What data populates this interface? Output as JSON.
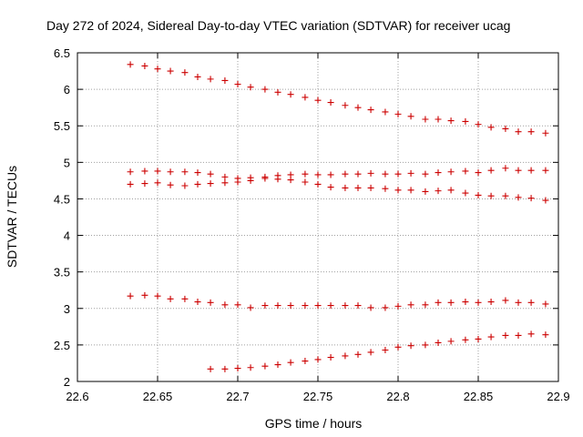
{
  "chart_data": {
    "type": "scatter",
    "title": "Day 272 of 2024, Sidereal Day-to-day VTEC variation (SDTVAR) for receiver ucag",
    "xlabel": "GPS time / hours",
    "ylabel": "SDTVAR / TECUs",
    "xlim": [
      22.6,
      22.9
    ],
    "ylim": [
      2,
      6.5
    ],
    "xticks": [
      "22.6",
      "22.65",
      "22.7",
      "22.75",
      "22.8",
      "22.85",
      "22.9"
    ],
    "yticks": [
      "2",
      "2.5",
      "3",
      "3.5",
      "4",
      "4.5",
      "5",
      "5.5",
      "6",
      "6.5"
    ],
    "grid": true,
    "marker_color": "#cc0000",
    "series": [
      {
        "name": "series-a",
        "x": [
          22.633,
          22.642,
          22.65,
          22.658,
          22.667,
          22.675,
          22.683,
          22.692,
          22.7,
          22.708,
          22.717,
          22.725,
          22.733,
          22.742,
          22.75,
          22.758,
          22.767,
          22.775,
          22.783,
          22.792,
          22.8,
          22.808,
          22.817,
          22.825,
          22.833,
          22.842,
          22.85,
          22.858,
          22.867,
          22.875,
          22.883,
          22.892
        ],
        "y": [
          6.34,
          6.32,
          6.28,
          6.25,
          6.23,
          6.17,
          6.14,
          6.12,
          6.07,
          6.03,
          6.0,
          5.96,
          5.93,
          5.89,
          5.85,
          5.82,
          5.78,
          5.75,
          5.72,
          5.69,
          5.66,
          5.63,
          5.59,
          5.59,
          5.57,
          5.56,
          5.52,
          5.48,
          5.46,
          5.42,
          5.42,
          5.4
        ]
      },
      {
        "name": "series-b",
        "x": [
          22.633,
          22.642,
          22.65,
          22.658,
          22.667,
          22.675,
          22.683,
          22.692,
          22.7,
          22.708,
          22.717,
          22.725,
          22.733,
          22.742,
          22.75,
          22.758,
          22.767,
          22.775,
          22.783,
          22.792,
          22.8,
          22.808,
          22.817,
          22.825,
          22.833,
          22.842,
          22.85,
          22.858,
          22.867,
          22.875,
          22.883,
          22.892
        ],
        "y": [
          4.87,
          4.88,
          4.88,
          4.87,
          4.87,
          4.86,
          4.84,
          4.8,
          4.78,
          4.79,
          4.8,
          4.82,
          4.83,
          4.84,
          4.83,
          4.83,
          4.84,
          4.84,
          4.85,
          4.84,
          4.84,
          4.85,
          4.84,
          4.86,
          4.87,
          4.88,
          4.86,
          4.89,
          4.92,
          4.89,
          4.89,
          4.89
        ]
      },
      {
        "name": "series-c",
        "x": [
          22.633,
          22.642,
          22.65,
          22.658,
          22.667,
          22.675,
          22.683,
          22.692,
          22.7,
          22.708,
          22.717,
          22.725,
          22.733,
          22.742,
          22.75,
          22.758,
          22.767,
          22.775,
          22.783,
          22.792,
          22.8,
          22.808,
          22.817,
          22.825,
          22.833,
          22.842,
          22.85,
          22.858,
          22.867,
          22.875,
          22.883,
          22.892
        ],
        "y": [
          4.7,
          4.71,
          4.72,
          4.69,
          4.68,
          4.7,
          4.71,
          4.72,
          4.73,
          4.75,
          4.78,
          4.77,
          4.76,
          4.73,
          4.7,
          4.66,
          4.65,
          4.65,
          4.65,
          4.64,
          4.62,
          4.62,
          4.6,
          4.61,
          4.62,
          4.58,
          4.55,
          4.54,
          4.54,
          4.52,
          4.51,
          4.48
        ]
      },
      {
        "name": "series-d",
        "x": [
          22.633,
          22.642,
          22.65,
          22.658,
          22.667,
          22.675,
          22.683,
          22.692,
          22.7,
          22.708,
          22.717,
          22.725,
          22.733,
          22.742,
          22.75,
          22.758,
          22.767,
          22.775,
          22.783,
          22.792,
          22.8,
          22.808,
          22.817,
          22.825,
          22.833,
          22.842,
          22.85,
          22.858,
          22.867,
          22.875,
          22.883,
          22.892
        ],
        "y": [
          3.17,
          3.18,
          3.17,
          3.13,
          3.13,
          3.09,
          3.08,
          3.05,
          3.05,
          3.01,
          3.04,
          3.04,
          3.04,
          3.04,
          3.04,
          3.04,
          3.04,
          3.04,
          3.01,
          3.01,
          3.03,
          3.05,
          3.05,
          3.08,
          3.08,
          3.09,
          3.08,
          3.09,
          3.11,
          3.08,
          3.08,
          3.06
        ]
      },
      {
        "name": "series-e",
        "x": [
          22.683,
          22.692,
          22.7,
          22.708,
          22.717,
          22.725,
          22.733,
          22.742,
          22.75,
          22.758,
          22.767,
          22.775,
          22.783,
          22.792,
          22.8,
          22.808,
          22.817,
          22.825,
          22.833,
          22.842,
          22.85,
          22.858,
          22.867,
          22.875,
          22.883,
          22.892
        ],
        "y": [
          2.17,
          2.17,
          2.18,
          2.19,
          2.21,
          2.23,
          2.26,
          2.28,
          2.3,
          2.33,
          2.35,
          2.37,
          2.4,
          2.43,
          2.47,
          2.49,
          2.5,
          2.53,
          2.55,
          2.57,
          2.58,
          2.61,
          2.63,
          2.63,
          2.65,
          2.64
        ]
      }
    ]
  }
}
